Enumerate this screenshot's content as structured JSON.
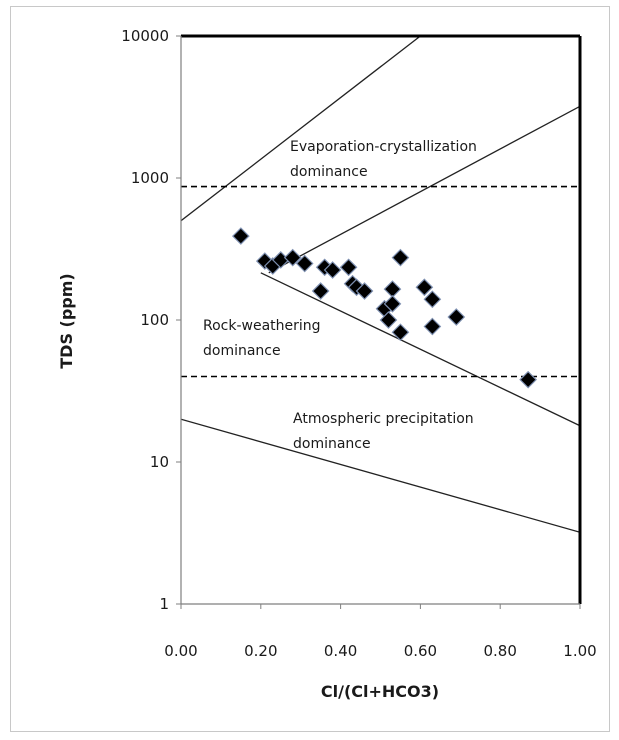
{
  "chart_data": {
    "type": "scatter",
    "title": "",
    "xlabel": "Cl/(Cl+HCO3)",
    "ylabel": "TDS (ppm)",
    "xlim": [
      0,
      1
    ],
    "ylim": [
      1,
      10000
    ],
    "yscale": "log",
    "grid": false,
    "x_ticks": [
      "0.00",
      "0.20",
      "0.40",
      "0.60",
      "0.80",
      "1.00"
    ],
    "y_ticks": [
      "1",
      "10",
      "100",
      "1000",
      "10000"
    ],
    "marker": "diamond",
    "colors": {
      "points": "#000000",
      "lines": "#222222"
    },
    "annotations": [
      {
        "id": "evap",
        "lines": [
          "Evaporation-crystallization",
          "dominance"
        ]
      },
      {
        "id": "rock",
        "lines": [
          "Rock-weathering",
          "dominance"
        ]
      },
      {
        "id": "atmo",
        "lines": [
          "Atmospheric precipitation",
          "dominance"
        ]
      }
    ],
    "boundaries": [
      {
        "style": "solid",
        "points": [
          [
            0.0,
            500
          ],
          [
            0.6,
            10000
          ]
        ]
      },
      {
        "style": "solid",
        "points": [
          [
            0.22,
            215
          ],
          [
            1.0,
            3200
          ]
        ]
      },
      {
        "style": "solid",
        "points": [
          [
            0.2,
            215
          ],
          [
            1.0,
            18
          ]
        ]
      },
      {
        "style": "solid",
        "points": [
          [
            0.0,
            20
          ],
          [
            1.0,
            3.2
          ]
        ]
      },
      {
        "style": "dashed",
        "points": [
          [
            0.0,
            870
          ],
          [
            1.0,
            870
          ]
        ]
      },
      {
        "style": "dashed",
        "points": [
          [
            0.0,
            40
          ],
          [
            1.0,
            40
          ]
        ]
      }
    ],
    "points": [
      [
        0.15,
        390
      ],
      [
        0.21,
        260
      ],
      [
        0.23,
        240
      ],
      [
        0.25,
        265
      ],
      [
        0.28,
        275
      ],
      [
        0.31,
        250
      ],
      [
        0.35,
        160
      ],
      [
        0.36,
        235
      ],
      [
        0.38,
        225
      ],
      [
        0.42,
        235
      ],
      [
        0.43,
        180
      ],
      [
        0.44,
        170
      ],
      [
        0.46,
        160
      ],
      [
        0.51,
        120
      ],
      [
        0.52,
        100
      ],
      [
        0.53,
        165
      ],
      [
        0.53,
        130
      ],
      [
        0.55,
        275
      ],
      [
        0.55,
        82
      ],
      [
        0.61,
        170
      ],
      [
        0.63,
        140
      ],
      [
        0.63,
        90
      ],
      [
        0.69,
        105
      ],
      [
        0.87,
        38
      ]
    ]
  }
}
